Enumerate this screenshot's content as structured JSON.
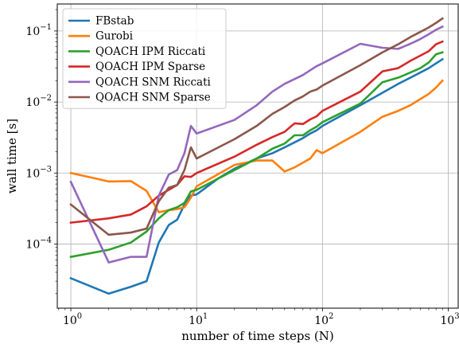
{
  "chart_data": {
    "type": "line",
    "title": "",
    "xlabel": "number of time steps (N)",
    "ylabel": "wall time [s]",
    "xscale": "log",
    "yscale": "log",
    "xlim": [
      0.78,
      1200
    ],
    "ylim": [
      1.25e-05,
      0.24
    ],
    "grid": true,
    "legend_position": "top-left",
    "x_ticks": [
      {
        "value": 1,
        "base": "10",
        "exp": "0"
      },
      {
        "value": 10,
        "base": "10",
        "exp": "1"
      },
      {
        "value": 100,
        "base": "10",
        "exp": "2"
      },
      {
        "value": 1000,
        "base": "10",
        "exp": "3"
      }
    ],
    "y_ticks": [
      {
        "value": 0.0001,
        "base": "10",
        "exp": "−4"
      },
      {
        "value": 0.001,
        "base": "10",
        "exp": "−3"
      },
      {
        "value": 0.01,
        "base": "10",
        "exp": "−2"
      },
      {
        "value": 0.1,
        "base": "10",
        "exp": "−1"
      }
    ],
    "series": [
      {
        "name": "FBstab",
        "color": "#1f77b4",
        "points": [
          [
            1,
            3.3e-05
          ],
          [
            2,
            2e-05
          ],
          [
            3,
            2.5e-05
          ],
          [
            4,
            3e-05
          ],
          [
            5,
            0.000105
          ],
          [
            6,
            0.000185
          ],
          [
            7,
            0.00022
          ],
          [
            8,
            0.00036
          ],
          [
            9,
            0.00048
          ],
          [
            10,
            0.0005
          ],
          [
            15,
            0.00085
          ],
          [
            20,
            0.00115
          ],
          [
            30,
            0.0016
          ],
          [
            40,
            0.0019
          ],
          [
            50,
            0.0023
          ],
          [
            60,
            0.0027
          ],
          [
            70,
            0.0031
          ],
          [
            80,
            0.0036
          ],
          [
            90,
            0.004
          ],
          [
            100,
            0.0046
          ],
          [
            200,
            0.009
          ],
          [
            300,
            0.0135
          ],
          [
            400,
            0.018
          ],
          [
            500,
            0.022
          ],
          [
            600,
            0.026
          ],
          [
            700,
            0.03
          ],
          [
            800,
            0.035
          ],
          [
            900,
            0.04
          ]
        ]
      },
      {
        "name": "Gurobi",
        "color": "#ff7f0e",
        "points": [
          [
            1,
            0.001
          ],
          [
            2,
            0.00076
          ],
          [
            3,
            0.00077
          ],
          [
            4,
            0.00056
          ],
          [
            5,
            0.00028
          ],
          [
            6,
            0.0003
          ],
          [
            7,
            0.00031
          ],
          [
            8,
            0.00033
          ],
          [
            9,
            0.00045
          ],
          [
            10,
            0.00065
          ],
          [
            20,
            0.0013
          ],
          [
            30,
            0.0015
          ],
          [
            40,
            0.0015
          ],
          [
            50,
            0.00105
          ],
          [
            60,
            0.0012
          ],
          [
            70,
            0.0014
          ],
          [
            80,
            0.0016
          ],
          [
            90,
            0.0021
          ],
          [
            100,
            0.0019
          ],
          [
            200,
            0.0038
          ],
          [
            300,
            0.0062
          ],
          [
            400,
            0.0075
          ],
          [
            500,
            0.009
          ],
          [
            600,
            0.011
          ],
          [
            700,
            0.013
          ],
          [
            800,
            0.016
          ],
          [
            900,
            0.02
          ]
        ]
      },
      {
        "name": "QOACH IPM Riccati",
        "color": "#2ca02c",
        "points": [
          [
            1,
            6.6e-05
          ],
          [
            2,
            8.3e-05
          ],
          [
            3,
            0.000105
          ],
          [
            4,
            0.00015
          ],
          [
            5,
            0.00023
          ],
          [
            6,
            0.0003
          ],
          [
            7,
            0.00033
          ],
          [
            8,
            0.00038
          ],
          [
            9,
            0.00055
          ],
          [
            10,
            0.00058
          ],
          [
            20,
            0.0011
          ],
          [
            30,
            0.0016
          ],
          [
            40,
            0.0022
          ],
          [
            50,
            0.0026
          ],
          [
            60,
            0.0034
          ],
          [
            70,
            0.0034
          ],
          [
            80,
            0.004
          ],
          [
            90,
            0.0045
          ],
          [
            100,
            0.0052
          ],
          [
            200,
            0.0095
          ],
          [
            300,
            0.019
          ],
          [
            400,
            0.022
          ],
          [
            500,
            0.026
          ],
          [
            600,
            0.03
          ],
          [
            700,
            0.036
          ],
          [
            800,
            0.047
          ],
          [
            900,
            0.05
          ]
        ]
      },
      {
        "name": "QOACH IPM Sparse",
        "color": "#d62728",
        "points": [
          [
            1,
            0.0002
          ],
          [
            2,
            0.00023
          ],
          [
            3,
            0.00026
          ],
          [
            4,
            0.00034
          ],
          [
            5,
            0.00048
          ],
          [
            6,
            0.00058
          ],
          [
            7,
            0.00068
          ],
          [
            8,
            0.0009
          ],
          [
            9,
            0.00088
          ],
          [
            10,
            0.001
          ],
          [
            20,
            0.0017
          ],
          [
            30,
            0.0025
          ],
          [
            40,
            0.0032
          ],
          [
            50,
            0.0038
          ],
          [
            60,
            0.005
          ],
          [
            70,
            0.0049
          ],
          [
            80,
            0.0057
          ],
          [
            90,
            0.0063
          ],
          [
            100,
            0.0075
          ],
          [
            200,
            0.014
          ],
          [
            300,
            0.027
          ],
          [
            400,
            0.03
          ],
          [
            500,
            0.038
          ],
          [
            600,
            0.045
          ],
          [
            700,
            0.052
          ],
          [
            800,
            0.065
          ],
          [
            900,
            0.071
          ]
        ]
      },
      {
        "name": "QOACH SNM Riccati",
        "color": "#9467bd",
        "points": [
          [
            1,
            0.00075
          ],
          [
            2,
            5.5e-05
          ],
          [
            3,
            6.6e-05
          ],
          [
            4,
            6.6e-05
          ],
          [
            5,
            0.00048
          ],
          [
            6,
            0.00095
          ],
          [
            7,
            0.0011
          ],
          [
            8,
            0.0019
          ],
          [
            9,
            0.0046
          ],
          [
            10,
            0.0036
          ],
          [
            20,
            0.0056
          ],
          [
            30,
            0.009
          ],
          [
            40,
            0.014
          ],
          [
            50,
            0.018
          ],
          [
            60,
            0.021
          ],
          [
            70,
            0.024
          ],
          [
            80,
            0.028
          ],
          [
            90,
            0.032
          ],
          [
            100,
            0.035
          ],
          [
            200,
            0.066
          ],
          [
            300,
            0.058
          ],
          [
            400,
            0.056
          ],
          [
            500,
            0.066
          ],
          [
            600,
            0.077
          ],
          [
            700,
            0.09
          ],
          [
            800,
            0.104
          ],
          [
            900,
            0.115
          ]
        ]
      },
      {
        "name": "QOACH SNM Sparse",
        "color": "#8c564b",
        "points": [
          [
            1,
            0.00036
          ],
          [
            2,
            0.000135
          ],
          [
            3,
            0.000145
          ],
          [
            4,
            0.000165
          ],
          [
            5,
            0.0004
          ],
          [
            6,
            0.00062
          ],
          [
            7,
            0.00068
          ],
          [
            8,
            0.0011
          ],
          [
            9,
            0.0023
          ],
          [
            10,
            0.0016
          ],
          [
            20,
            0.003
          ],
          [
            30,
            0.0046
          ],
          [
            40,
            0.0068
          ],
          [
            50,
            0.0085
          ],
          [
            60,
            0.0105
          ],
          [
            70,
            0.012
          ],
          [
            80,
            0.014
          ],
          [
            90,
            0.015
          ],
          [
            100,
            0.017
          ],
          [
            200,
            0.033
          ],
          [
            300,
            0.05
          ],
          [
            400,
            0.065
          ],
          [
            500,
            0.082
          ],
          [
            600,
            0.097
          ],
          [
            700,
            0.112
          ],
          [
            800,
            0.13
          ],
          [
            900,
            0.15
          ]
        ]
      }
    ]
  }
}
